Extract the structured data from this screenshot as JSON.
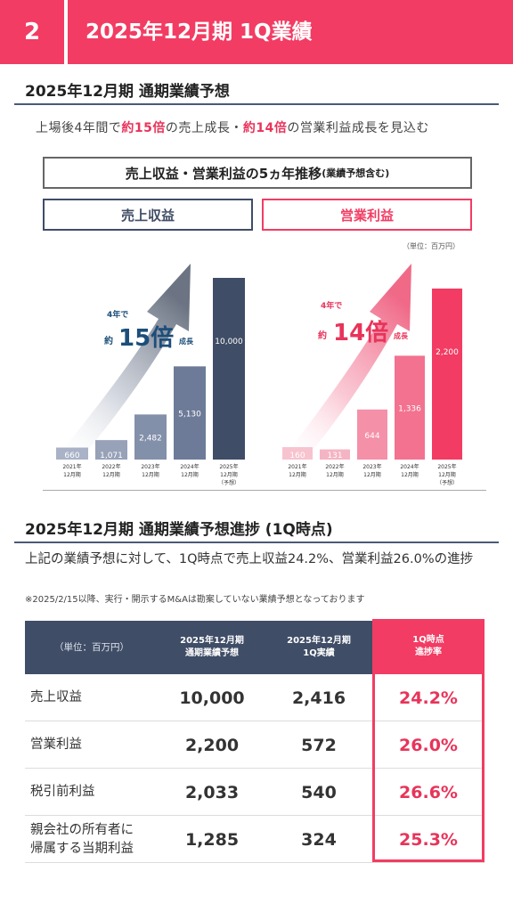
{
  "header": {
    "page_number": "2",
    "title": "2025年12月期 1Q業績"
  },
  "section1": {
    "title": "2025年12月期 通期業績予想",
    "lead_prefix": "上場後4年間で",
    "lead_hl1": "約15倍",
    "lead_mid": "の売上成長・",
    "lead_hl2": "約14倍",
    "lead_suffix": "の営業利益成長を見込む",
    "box_title": "売上収益・営業利益の5ヵ年推移",
    "box_title_small": "(業績予想含む)",
    "legend_sales": "売上収益",
    "legend_op": "営業利益",
    "unit": "（単位：百万円）"
  },
  "chart_data": [
    {
      "type": "bar",
      "series_label": "売上収益",
      "categories": [
        [
          "2021年",
          "12月期"
        ],
        [
          "2022年",
          "12月期"
        ],
        [
          "2023年",
          "12月期"
        ],
        [
          "2024年",
          "12月期"
        ],
        [
          "2025年",
          "12月期",
          "（予想）"
        ]
      ],
      "values": [
        660,
        1071,
        2482,
        5130,
        10000
      ],
      "value_labels": [
        "660",
        "1,071",
        "2,482",
        "5,130",
        "10,000"
      ],
      "ylim": [
        0,
        10000
      ],
      "annotation": {
        "line1": "4年で",
        "pre": "約",
        "big": "15倍",
        "post": "成長"
      },
      "colors": [
        "#a9b2c6",
        "#97a1b8",
        "#8390aa",
        "#6d7b98",
        "#3f4d66"
      ],
      "accent": "#1d4e7a"
    },
    {
      "type": "bar",
      "series_label": "営業利益",
      "categories": [
        [
          "2021年",
          "12月期"
        ],
        [
          "2022年",
          "12月期"
        ],
        [
          "2023年",
          "12月期"
        ],
        [
          "2024年",
          "12月期"
        ],
        [
          "2025年",
          "12月期",
          "（予想）"
        ]
      ],
      "values": [
        160,
        131,
        644,
        1336,
        2200
      ],
      "value_labels": [
        "160",
        "131",
        "644",
        "1,336",
        "2,200"
      ],
      "ylim": [
        0,
        2200
      ],
      "annotation": {
        "line1": "4年で",
        "pre": "約",
        "big": "14倍",
        "post": "成長"
      },
      "colors": [
        "#f7c3cf",
        "#f5b4c3",
        "#f490a8",
        "#f2728f",
        "#f23c63"
      ],
      "accent": "#e8345a"
    }
  ],
  "section2": {
    "title": "2025年12月期 通期業績予想進捗 (1Q時点)",
    "text": "上記の業績予想に対して、1Q時点で売上収益24.2%、営業利益26.0%の進捗",
    "note": "※2025/2/15以降、実行・開示するM&Aは勘案していない業績予想となっております"
  },
  "table": {
    "unit": "（単位：百万円）",
    "col1": [
      "2025年12月期",
      "通期業績予想"
    ],
    "col2": [
      "2025年12月期",
      "1Q実績"
    ],
    "col3": [
      "1Q時点",
      "進捗率"
    ],
    "rows": [
      {
        "label": [
          "売上収益"
        ],
        "forecast": "10,000",
        "actual": "2,416",
        "rate": "24.2%"
      },
      {
        "label": [
          "営業利益"
        ],
        "forecast": "2,200",
        "actual": "572",
        "rate": "26.0%"
      },
      {
        "label": [
          "税引前利益"
        ],
        "forecast": "2,033",
        "actual": "540",
        "rate": "26.6%"
      },
      {
        "label": [
          "親会社の所有者に",
          "帰属する当期利益"
        ],
        "forecast": "1,285",
        "actual": "324",
        "rate": "25.3%"
      }
    ]
  },
  "colors": {
    "brand": "#f23c63",
    "navy": "#3f4d66"
  }
}
